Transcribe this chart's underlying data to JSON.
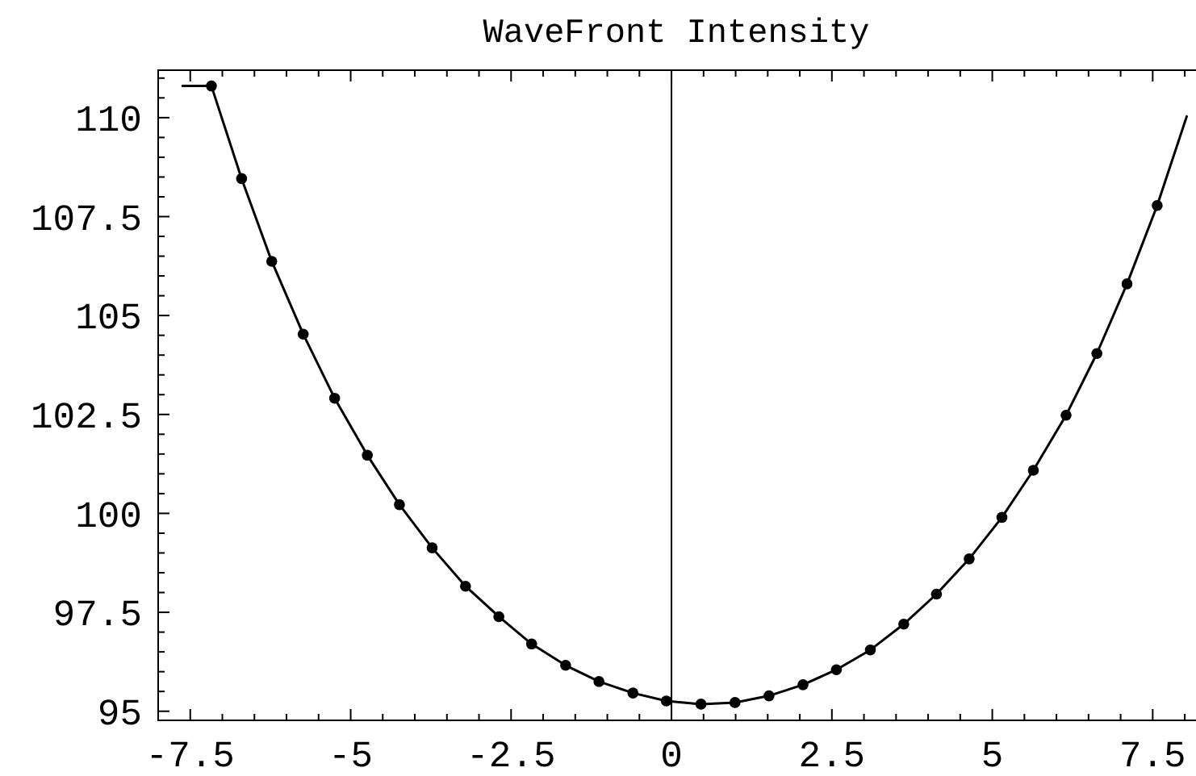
{
  "chart_data": {
    "type": "line",
    "title": "WaveFront Intensity",
    "xlim": [
      -8,
      8.2
    ],
    "ylim": [
      94.77,
      111.2
    ],
    "xticks": [
      {
        "value": -7.5,
        "label": "-7.5"
      },
      {
        "value": -7,
        "label": null
      },
      {
        "value": -6.5,
        "label": null
      },
      {
        "value": -6,
        "label": null
      },
      {
        "value": -5.5,
        "label": null
      },
      -5,
      {
        "value": -4.5,
        "label": null
      },
      {
        "value": -4,
        "label": null
      },
      {
        "value": -3.5,
        "label": null
      },
      {
        "value": -3,
        "label": null
      },
      {
        "value": -2.5,
        "label": "-2.5"
      },
      {
        "value": -2,
        "label": null
      },
      {
        "value": -1.5,
        "label": null
      },
      {
        "value": -1,
        "label": null
      },
      {
        "value": -0.5,
        "label": null
      },
      0,
      {
        "value": 0.5,
        "label": null
      },
      {
        "value": 1,
        "label": null
      },
      {
        "value": 1.5,
        "label": null
      },
      {
        "value": 2,
        "label": null
      },
      2.5,
      {
        "value": 3,
        "label": null
      },
      {
        "value": 3.5,
        "label": null
      },
      {
        "value": 4,
        "label": null
      },
      {
        "value": 4.5,
        "label": null
      },
      5,
      {
        "value": 5.5,
        "label": null
      },
      {
        "value": 6,
        "label": null
      },
      {
        "value": 6.5,
        "label": null
      },
      {
        "value": 7,
        "label": null
      },
      7.5,
      {
        "value": 8,
        "label": null
      }
    ],
    "yticks": [
      95,
      {
        "value": 95.5,
        "label": null
      },
      {
        "value": 96,
        "label": null
      },
      {
        "value": 96.5,
        "label": null
      },
      {
        "value": 97,
        "label": null
      },
      97.5,
      {
        "value": 98,
        "label": null
      },
      {
        "value": 98.5,
        "label": null
      },
      {
        "value": 99,
        "label": null
      },
      {
        "value": 99.5,
        "label": null
      },
      100,
      {
        "value": 100.5,
        "label": null
      },
      {
        "value": 101,
        "label": null
      },
      {
        "value": 101.5,
        "label": null
      },
      {
        "value": 102,
        "label": null
      },
      102.5,
      {
        "value": 103,
        "label": null
      },
      {
        "value": 103.5,
        "label": null
      },
      {
        "value": 104,
        "label": null
      },
      {
        "value": 104.5,
        "label": null
      },
      105,
      {
        "value": 105.5,
        "label": null
      },
      {
        "value": 106,
        "label": null
      },
      {
        "value": 106.5,
        "label": null
      },
      {
        "value": 107,
        "label": null
      },
      107.5,
      {
        "value": 108,
        "label": null
      },
      {
        "value": 108.5,
        "label": null
      },
      {
        "value": 109,
        "label": null
      },
      {
        "value": 109.5,
        "label": null
      },
      110,
      {
        "value": 110.5,
        "label": null
      },
      {
        "value": 111,
        "label": null
      }
    ],
    "ref_lines": [
      {
        "axis": "x",
        "value": 0,
        "color": "#000000"
      }
    ],
    "series": [
      {
        "color": "#000000",
        "x": [
          -7.62,
          -7.17,
          -6.7,
          -6.23,
          -5.74,
          -5.25,
          -4.74,
          -4.24,
          -3.73,
          -3.21,
          -2.69,
          -2.18,
          -1.65,
          -1.13,
          -0.6,
          -0.08,
          0.46,
          0.99,
          1.52,
          2.05,
          2.57,
          3.1,
          3.62,
          4.13,
          4.64,
          5.15,
          5.64,
          6.15,
          6.63,
          7.1,
          7.57,
          8.03
        ],
        "values": [
          110.8,
          110.8,
          108.46,
          106.37,
          104.53,
          102.91,
          101.47,
          100.22,
          99.13,
          98.16,
          97.39,
          96.7,
          96.16,
          95.75,
          95.46,
          95.26,
          95.18,
          95.22,
          95.39,
          95.67,
          96.05,
          96.55,
          97.2,
          97.96,
          98.85,
          99.9,
          101.09,
          102.48,
          104.04,
          105.8,
          107.78,
          110.03
        ]
      },
      {
        "type": "scatter",
        "color": "#000000",
        "marker": "circle",
        "x": [
          -7.17,
          -6.7,
          -6.23,
          -5.74,
          -5.25,
          -4.74,
          -4.24,
          -3.73,
          -3.21,
          -2.69,
          -2.18,
          -1.65,
          -1.13,
          -0.6,
          -0.08,
          0.46,
          0.99,
          1.52,
          2.05,
          2.57,
          3.1,
          3.62,
          4.13,
          4.64,
          5.15,
          5.64,
          6.15,
          6.63,
          7.1,
          7.57
        ],
        "values": [
          110.8,
          108.46,
          106.37,
          104.53,
          102.91,
          101.47,
          100.22,
          99.13,
          98.16,
          97.39,
          96.7,
          96.16,
          95.75,
          95.46,
          95.26,
          95.18,
          95.22,
          95.39,
          95.67,
          96.05,
          96.55,
          97.2,
          97.96,
          98.85,
          99.9,
          101.09,
          102.48,
          104.04,
          105.8,
          107.78
        ]
      }
    ]
  }
}
